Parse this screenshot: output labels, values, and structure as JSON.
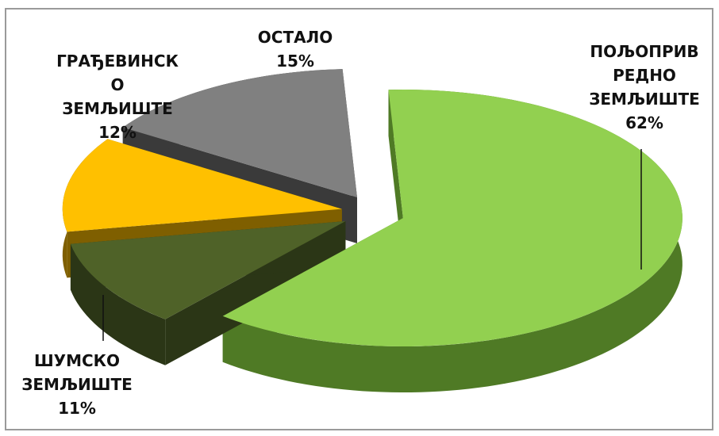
{
  "chart_data": {
    "type": "pie",
    "title": "",
    "slices": [
      {
        "label_lines": [
          "ПОЉОПРИВ",
          "РЕДНО",
          "ЗЕМЉИШТЕ"
        ],
        "value": 62,
        "value_text": "62%",
        "color": "#92d050",
        "side_color": "#4f7a25"
      },
      {
        "label_lines": [
          "ШУМСКО",
          "ЗЕМЉИШТЕ"
        ],
        "value": 11,
        "value_text": "11%",
        "color": "#4f6228",
        "side_color": "#2b3616"
      },
      {
        "label_lines": [
          "ГРАЂЕВИНСК",
          "О",
          "ЗЕМЉИШТЕ"
        ],
        "value": 12,
        "value_text": "12%",
        "color": "#ffc000",
        "side_color": "#7f5f00"
      },
      {
        "label_lines": [
          "ОСТАЛО"
        ],
        "value": 15,
        "value_text": "15%",
        "color": "#808080",
        "side_color": "#3a3a3a"
      }
    ],
    "legend": "none",
    "grid": false
  }
}
